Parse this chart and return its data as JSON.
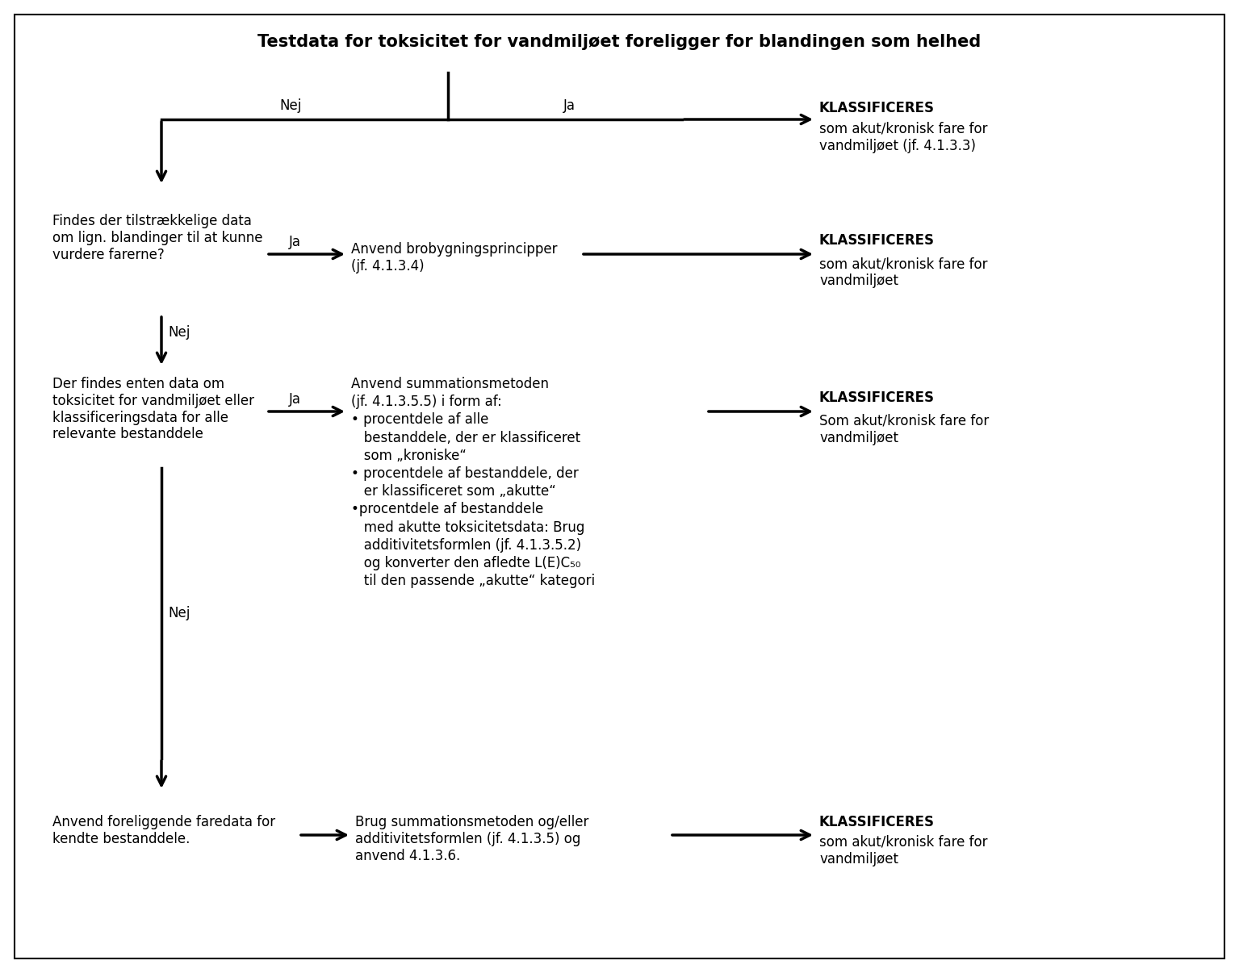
{
  "title": "Testdata for toksicitet for vandmiljøet foreligger for blandingen som helhed",
  "bg_color": "#ffffff",
  "border_color": "#000000",
  "text_color": "#000000",
  "figsize": [
    15.35,
    12.06
  ],
  "dpi": 100,
  "title_fontsize": 15,
  "body_fontsize": 12,
  "klass1_bold": "KLASSIFICERES",
  "klass1_rest": "som akut/kronisk fare for\nvandmiljøet (jf. 4.1.3.3)",
  "klass2_bold": "KLASSIFICERES",
  "klass2_rest": "som akut/kronisk fare for\nvandmiljøet",
  "klass3_bold": "KLASSIFICERES",
  "klass3_rest": "Som akut/kronisk fare for\nvandmiljøet",
  "klass4_bold": "KLASSIFICERES",
  "klass4_rest": "som akut/kronisk fare for\nvandmiljøet",
  "q1_text": "Findes der tilstrækkelige data\nom lign. blandinger til at kunne\nvurdere farerne?",
  "bridge_text": "Anvend brobygningsprincipper\n(jf. 4.1.3.4)",
  "q2_text": "Der findes enten data om\ntoksicitet for vandmiljøet eller\nklassificeringsdata for alle\nrelevante bestanddele",
  "summ_text": "Anvend summationsmetoden\n(jf. 4.1.3.5.5) i form af:\n• procentdele af alle\n   bestanddele, der er klassificeret\n   som „kroniske“\n• procentdele af bestanddele, der\n   er klassificeret som „akutte“\n•procentdele af bestanddele\n   med akutte toksicitetsdata: Brug\n   additivitetsformlen (jf. 4.1.3.5.2)\n   og konverter den afledte L(E)C₅₀\n   til den passende „akutte“ kategori",
  "q3_text": "Anvend foreliggende faredata for\nkendte bestanddele.",
  "final_text": "Brug summationsmetoden og/eller\nadditivitetsformlen (jf. 4.1.3.5) og\nanvend 4.1.3.6."
}
